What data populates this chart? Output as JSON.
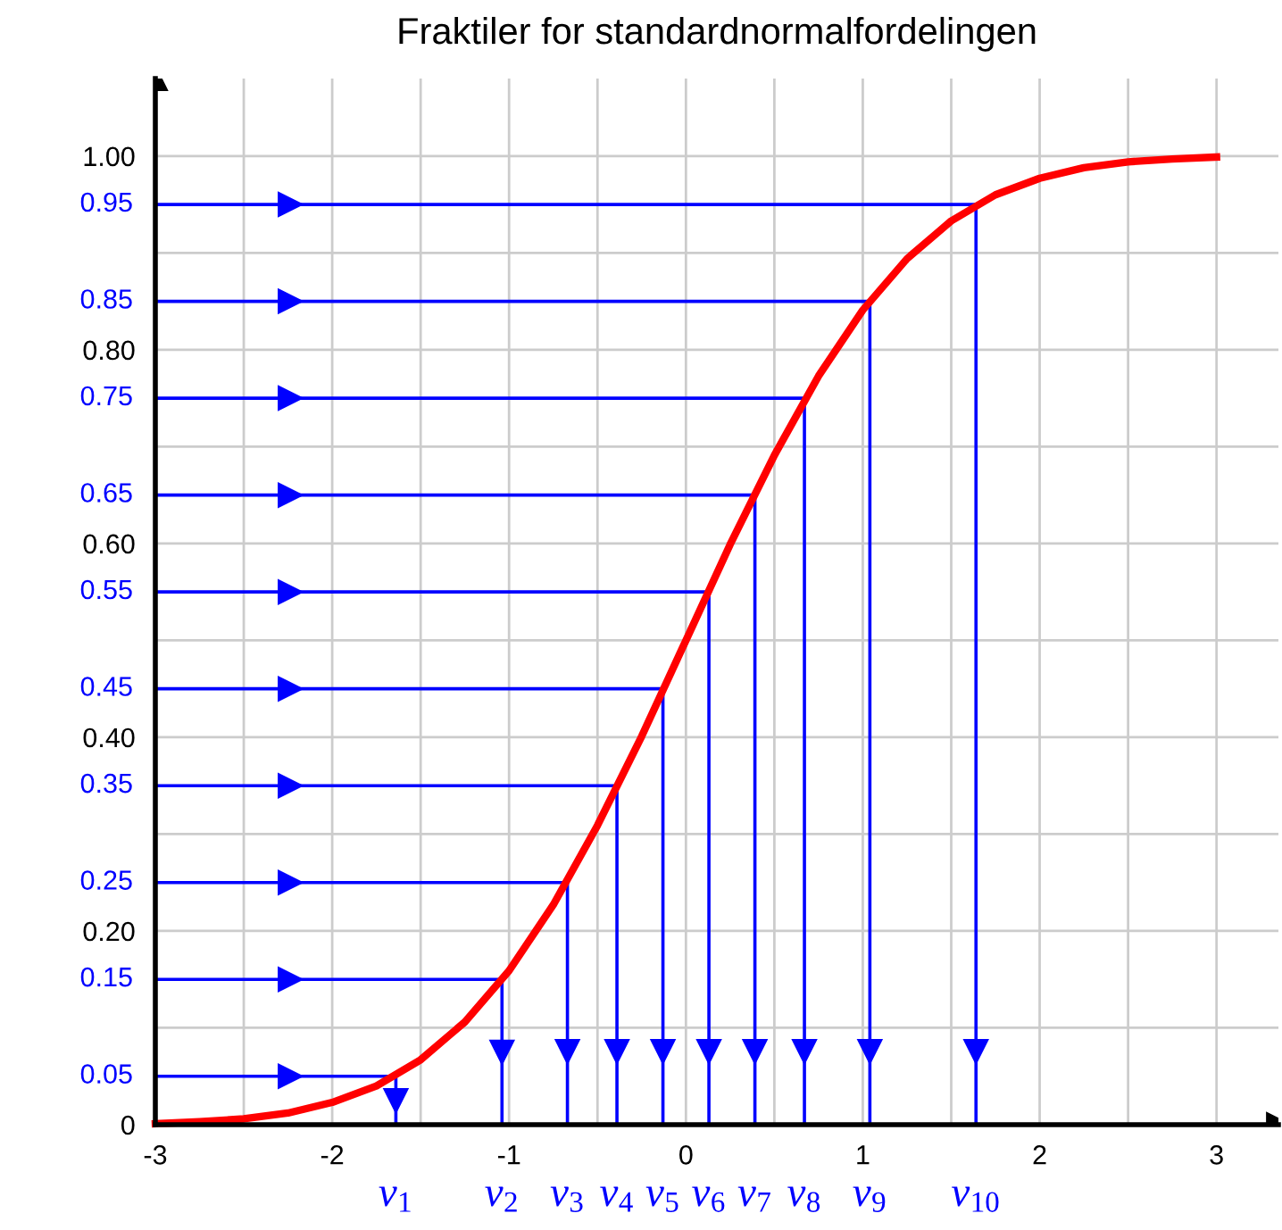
{
  "chart_data": {
    "type": "line",
    "title": "Fraktiler for standardnormalfordelingen",
    "xlim": [
      -3,
      3.35
    ],
    "ylim": [
      0,
      1.08
    ],
    "xticks": [
      -3,
      {
        "value": -2.5,
        "label": null
      },
      -2,
      {
        "value": -1.5,
        "label": null
      },
      -1,
      {
        "value": -0.5,
        "label": null
      },
      0,
      {
        "value": 0.5,
        "label": null
      },
      1,
      {
        "value": 1.5,
        "label": null
      },
      2,
      {
        "value": 2.5,
        "label": null
      },
      3
    ],
    "yticks": [
      0,
      {
        "value": 0.1,
        "label": null
      },
      {
        "value": 0.2,
        "label": "0.20"
      },
      {
        "value": 0.3,
        "label": null
      },
      {
        "value": 0.4,
        "label": "0.40"
      },
      {
        "value": 0.5,
        "label": null
      },
      {
        "value": 0.6,
        "label": "0.60"
      },
      {
        "value": 0.7,
        "label": null
      },
      {
        "value": 0.8,
        "label": "0.80"
      },
      {
        "value": 0.9,
        "label": null
      },
      {
        "value": 1.0,
        "label": "1.00"
      }
    ],
    "grid": true,
    "marker": "none",
    "line_style": "solid",
    "series": [
      {
        "color": "#ff0000",
        "x": [
          -3,
          -2.75,
          -2.5,
          -2.25,
          -2,
          -1.75,
          -1.5,
          -1.25,
          -1,
          -0.75,
          -0.5,
          -0.25,
          0,
          0.25,
          0.5,
          0.75,
          1,
          1.25,
          1.5,
          1.75,
          2,
          2.25,
          2.5,
          2.75,
          3
        ],
        "values": [
          0.001,
          0.003,
          0.006,
          0.012,
          0.023,
          0.04,
          0.067,
          0.106,
          0.159,
          0.227,
          0.309,
          0.401,
          0.5,
          0.599,
          0.691,
          0.773,
          0.841,
          0.894,
          0.933,
          0.96,
          0.977,
          0.988,
          0.994,
          0.997,
          0.999
        ]
      },
      {
        "color": "#0000ff",
        "x": [
          -3,
          -1.64,
          -1.64
        ],
        "values": [
          0.05,
          0.05,
          0
        ]
      },
      {
        "color": "#0000ff",
        "x": [
          -3,
          -1.04,
          -1.04
        ],
        "values": [
          0.15,
          0.15,
          0
        ]
      },
      {
        "color": "#0000ff",
        "x": [
          -3,
          -0.67,
          -0.67
        ],
        "values": [
          0.25,
          0.25,
          0
        ]
      },
      {
        "color": "#0000ff",
        "x": [
          -3,
          -0.39,
          -0.39
        ],
        "values": [
          0.35,
          0.35,
          0
        ]
      },
      {
        "color": "#0000ff",
        "x": [
          -3,
          -0.13,
          -0.13
        ],
        "values": [
          0.45,
          0.45,
          0
        ]
      },
      {
        "color": "#0000ff",
        "x": [
          -3,
          0.13,
          0.13
        ],
        "values": [
          0.55,
          0.55,
          0
        ]
      },
      {
        "color": "#0000ff",
        "x": [
          -3,
          0.39,
          0.39
        ],
        "values": [
          0.65,
          0.65,
          0
        ]
      },
      {
        "color": "#0000ff",
        "x": [
          -3,
          0.67,
          0.67
        ],
        "values": [
          0.75,
          0.75,
          0
        ]
      },
      {
        "color": "#0000ff",
        "x": [
          -3,
          1.04,
          1.04
        ],
        "values": [
          0.85,
          0.85,
          0
        ]
      },
      {
        "color": "#0000ff",
        "x": [
          -3,
          1.64,
          1.64
        ],
        "values": [
          0.95,
          0.95,
          0
        ]
      }
    ],
    "annotations": [
      {
        "text": "0.05",
        "x": -3,
        "y": 0.05
      },
      {
        "text": "0.15",
        "x": -3,
        "y": 0.15
      },
      {
        "text": "0.25",
        "x": -3,
        "y": 0.25
      },
      {
        "text": "0.35",
        "x": -3,
        "y": 0.35
      },
      {
        "text": "0.45",
        "x": -3,
        "y": 0.45
      },
      {
        "text": "0.55",
        "x": -3,
        "y": 0.55
      },
      {
        "text": "0.65",
        "x": -3,
        "y": 0.65
      },
      {
        "text": "0.75",
        "x": -3,
        "y": 0.75
      },
      {
        "text": "0.85",
        "x": -3,
        "y": 0.85
      },
      {
        "text": "0.95",
        "x": -3,
        "y": 0.95
      },
      {
        "text": "v$_{1}$",
        "x": -1.64,
        "y": 0
      },
      {
        "text": "v$_{2}$",
        "x": -1.04,
        "y": 0
      },
      {
        "text": "v$_{3}$",
        "x": -0.67,
        "y": 0
      },
      {
        "text": "v$_{4}$",
        "x": -0.39,
        "y": 0
      },
      {
        "text": "v$_{5}$",
        "x": -0.13,
        "y": 0
      },
      {
        "text": "v$_{6}$",
        "x": 0.13,
        "y": 0
      },
      {
        "text": "v$_{7}$",
        "x": 0.39,
        "y": 0
      },
      {
        "text": "v$_{8}$",
        "x": 0.67,
        "y": 0
      },
      {
        "text": "v$_{9}$",
        "x": 1.04,
        "y": 0
      },
      {
        "text": "v$_{10}$",
        "x": 1.64,
        "y": 0
      }
    ]
  }
}
